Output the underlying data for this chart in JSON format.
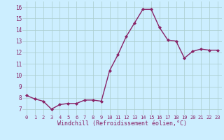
{
  "x": [
    0,
    1,
    2,
    3,
    4,
    5,
    6,
    7,
    8,
    9,
    10,
    11,
    12,
    13,
    14,
    15,
    16,
    17,
    18,
    19,
    20,
    21,
    22,
    23
  ],
  "y": [
    8.2,
    7.9,
    7.7,
    7.0,
    7.4,
    7.5,
    7.5,
    7.8,
    7.8,
    7.7,
    10.4,
    11.8,
    13.4,
    14.6,
    15.8,
    15.8,
    14.2,
    13.1,
    13.0,
    11.5,
    12.1,
    12.3,
    12.2,
    12.2
  ],
  "line_color": "#882266",
  "marker": "D",
  "marker_size": 2.0,
  "line_width": 1.0,
  "bg_color": "#cceeff",
  "grid_color": "#aacccc",
  "xlabel": "Windchill (Refroidissement éolien,°C)",
  "xlabel_color": "#882266",
  "tick_color": "#882266",
  "ylim": [
    6.5,
    16.5
  ],
  "yticks": [
    7,
    8,
    9,
    10,
    11,
    12,
    13,
    14,
    15,
    16
  ],
  "xticks": [
    0,
    1,
    2,
    3,
    4,
    5,
    6,
    7,
    8,
    9,
    10,
    11,
    12,
    13,
    14,
    15,
    16,
    17,
    18,
    19,
    20,
    21,
    22,
    23
  ]
}
